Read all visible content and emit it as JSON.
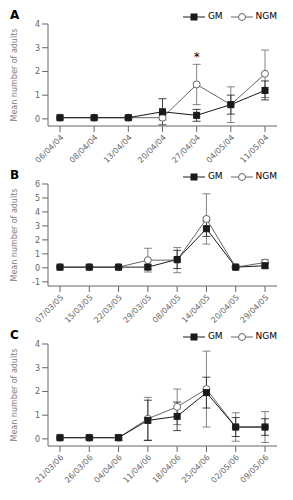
{
  "chart_data": [
    {
      "type": "line",
      "title": "A",
      "y_label": "Mean number of adults",
      "categories": [
        "06/04/04",
        "08/04/04",
        "13/04/04",
        "20/04/04",
        "27/04/04",
        "04/05/04",
        "11/05/04"
      ],
      "series": [
        {
          "name": "NGM",
          "color": "#666666",
          "marker": "circle",
          "line_style": "solid",
          "values": [
            0.05,
            0.05,
            0.05,
            0.05,
            1.45,
            0.6,
            1.9
          ],
          "errors": [
            0.05,
            0.05,
            0.05,
            0.1,
            0.85,
            0.75,
            1.0
          ]
        },
        {
          "name": "GM",
          "color": "#1a1a1a",
          "marker": "square",
          "line_style": "solid",
          "values": [
            0.05,
            0.05,
            0.05,
            0.3,
            0.15,
            0.6,
            1.2
          ],
          "errors": [
            0.05,
            0.05,
            0.05,
            0.55,
            0.25,
            0.4,
            0.4
          ]
        }
      ],
      "annotations": [
        {
          "text": "*",
          "x": "27/04/04",
          "y": 2.45
        }
      ],
      "ylim": [
        -0.3,
        4
      ],
      "yticks": [
        0,
        1,
        2,
        3,
        4
      ],
      "grid": false,
      "legend": "upper right"
    },
    {
      "type": "line",
      "title": "B",
      "y_label": "Mean number of adults",
      "categories": [
        "07/03/05",
        "15/03/05",
        "22/03/05",
        "29/03/05",
        "08/04/05",
        "14/04/05",
        "20/04/05",
        "29/04/05"
      ],
      "series": [
        {
          "name": "NGM",
          "color": "#666666",
          "marker": "circle",
          "line_style": "solid",
          "values": [
            0.05,
            0.05,
            0.05,
            0.55,
            0.55,
            3.5,
            0.05,
            0.38
          ],
          "errors": [
            0.05,
            0.05,
            0.05,
            0.85,
            0.9,
            1.8,
            0.1,
            0.2
          ]
        },
        {
          "name": "GM",
          "color": "#1a1a1a",
          "marker": "square",
          "line_style": "solid",
          "values": [
            0.05,
            0.05,
            0.05,
            0.05,
            0.6,
            2.8,
            0.05,
            0.15
          ],
          "errors": [
            0.05,
            0.05,
            0.05,
            0.15,
            0.65,
            0.55,
            0.05,
            0.15
          ]
        }
      ],
      "ylim": [
        -1.3,
        6
      ],
      "yticks": [
        -1,
        0,
        1,
        2,
        3,
        4,
        5,
        6
      ],
      "grid": false,
      "legend": "upper right"
    },
    {
      "type": "line",
      "title": "C",
      "y_label": "Mean number of adults",
      "categories": [
        "21/03/06",
        "26/03/06",
        "04/04/06",
        "11/04/06",
        "18/04/06",
        "25/04/06",
        "02/05/06",
        "09/05/06"
      ],
      "series": [
        {
          "name": "NGM",
          "color": "#666666",
          "marker": "circle",
          "line_style": "solid",
          "values": [
            0.05,
            0.05,
            0.05,
            0.85,
            1.35,
            2.1,
            0.5,
            0.5
          ],
          "errors": [
            0.05,
            0.05,
            0.1,
            0.9,
            0.75,
            1.6,
            0.6,
            0.65
          ]
        },
        {
          "name": "GM",
          "color": "#1a1a1a",
          "marker": "square",
          "line_style": "solid",
          "values": [
            0.05,
            0.05,
            0.05,
            0.78,
            0.95,
            1.95,
            0.5,
            0.5
          ],
          "errors": [
            0.05,
            0.05,
            0.1,
            0.85,
            0.6,
            0.65,
            0.4,
            0.35
          ]
        }
      ],
      "ylim": [
        -0.3,
        4
      ],
      "yticks": [
        0,
        1,
        2,
        3,
        4
      ],
      "grid": false,
      "legend": "upper right"
    }
  ]
}
